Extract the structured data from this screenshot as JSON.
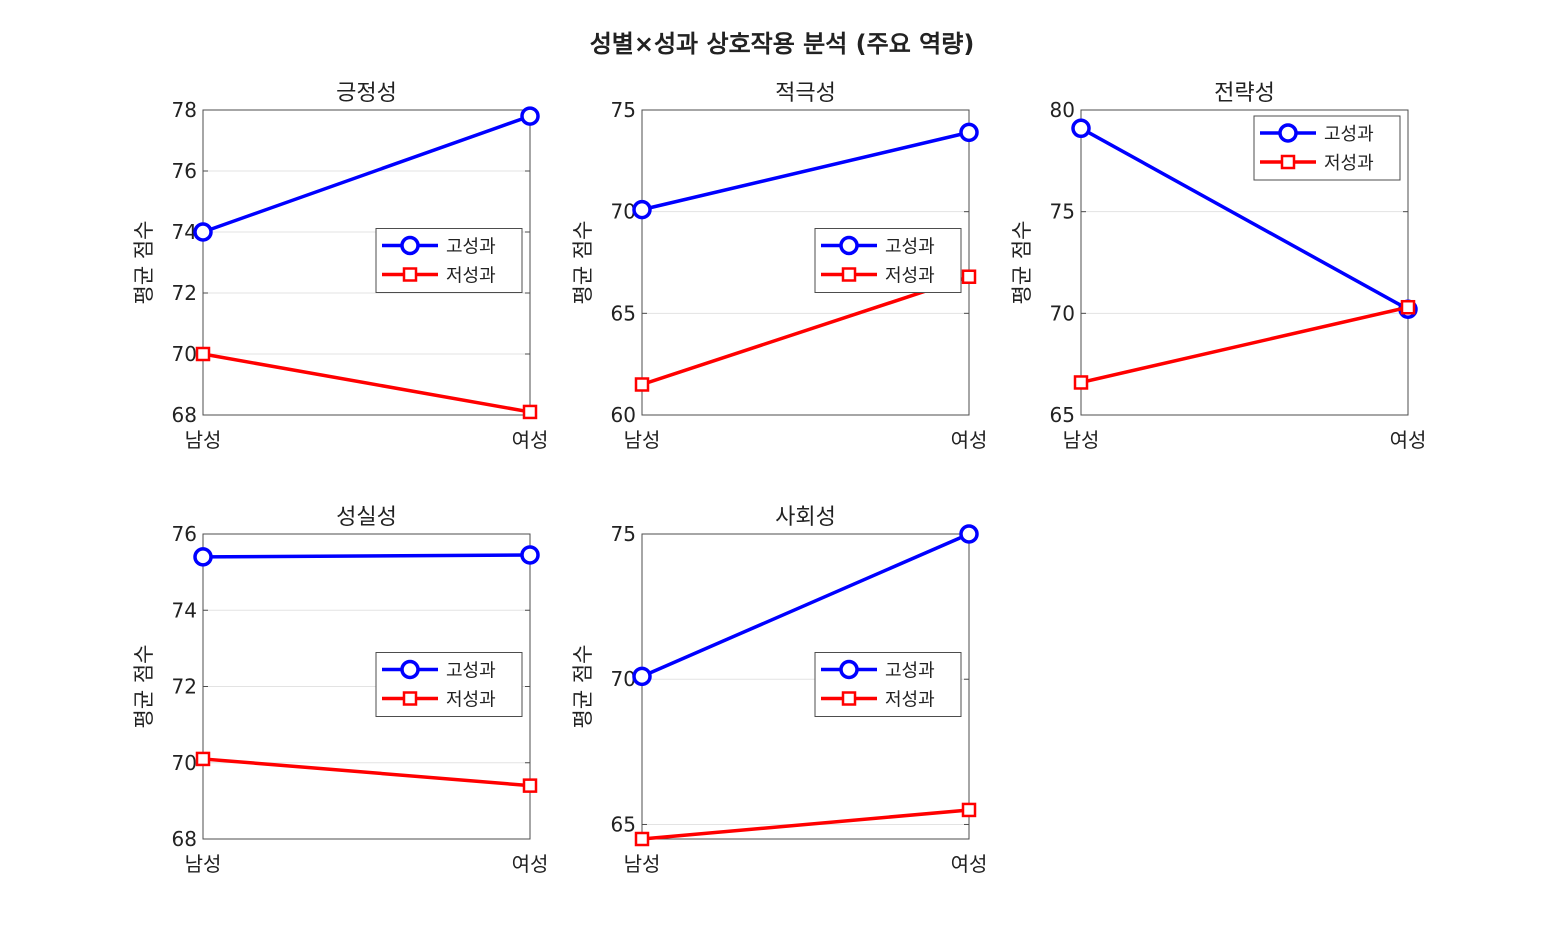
{
  "figure_title": "성별×성과 상호작용 분석 (주요 역량)",
  "chart_data": [
    {
      "type": "line",
      "title": "긍정성",
      "categories": [
        "남성",
        "여성"
      ],
      "ylabel": "평균 점수",
      "ylim": [
        68,
        78
      ],
      "yticks": [
        "68",
        "70",
        "72",
        "74",
        "76",
        "78"
      ],
      "grid": true,
      "legend": "right",
      "series": [
        {
          "name": "고성과",
          "values": [
            74.0,
            77.8
          ],
          "color": "#0000ff",
          "marker": "circle"
        },
        {
          "name": "저성과",
          "values": [
            70.0,
            68.1
          ],
          "color": "#ff0000",
          "marker": "square"
        }
      ]
    },
    {
      "type": "line",
      "title": "적극성",
      "categories": [
        "남성",
        "여성"
      ],
      "ylabel": "평균 점수",
      "ylim": [
        60,
        75
      ],
      "yticks": [
        "60",
        "65",
        "70",
        "75"
      ],
      "grid": true,
      "legend": "right",
      "series": [
        {
          "name": "고성과",
          "values": [
            70.1,
            73.9
          ],
          "color": "#0000ff",
          "marker": "circle"
        },
        {
          "name": "저성과",
          "values": [
            61.5,
            66.8
          ],
          "color": "#ff0000",
          "marker": "square"
        }
      ]
    },
    {
      "type": "line",
      "title": "전략성",
      "categories": [
        "남성",
        "여성"
      ],
      "ylabel": "평균 점수",
      "ylim": [
        65,
        80
      ],
      "yticks": [
        "65",
        "70",
        "75",
        "80"
      ],
      "grid": true,
      "legend": "top-right",
      "series": [
        {
          "name": "고성과",
          "values": [
            79.1,
            70.2
          ],
          "color": "#0000ff",
          "marker": "circle"
        },
        {
          "name": "저성과",
          "values": [
            66.6,
            70.3
          ],
          "color": "#ff0000",
          "marker": "square"
        }
      ]
    },
    {
      "type": "line",
      "title": "성실성",
      "categories": [
        "남성",
        "여성"
      ],
      "ylabel": "평균 점수",
      "ylim": [
        68,
        76
      ],
      "yticks": [
        "68",
        "70",
        "72",
        "74",
        "76"
      ],
      "grid": true,
      "legend": "right",
      "series": [
        {
          "name": "고성과",
          "values": [
            75.4,
            75.45
          ],
          "color": "#0000ff",
          "marker": "circle"
        },
        {
          "name": "저성과",
          "values": [
            70.1,
            69.4
          ],
          "color": "#ff0000",
          "marker": "square"
        }
      ]
    },
    {
      "type": "line",
      "title": "사회성",
      "categories": [
        "남성",
        "여성"
      ],
      "ylabel": "평균 점수",
      "ylim": [
        64.5,
        75
      ],
      "yticks": [
        "65",
        "70",
        "75"
      ],
      "grid": true,
      "legend": "right",
      "series": [
        {
          "name": "고성과",
          "values": [
            70.1,
            75.0
          ],
          "color": "#0000ff",
          "marker": "circle"
        },
        {
          "name": "저성과",
          "values": [
            64.5,
            65.5
          ],
          "color": "#ff0000",
          "marker": "square"
        }
      ]
    }
  ]
}
